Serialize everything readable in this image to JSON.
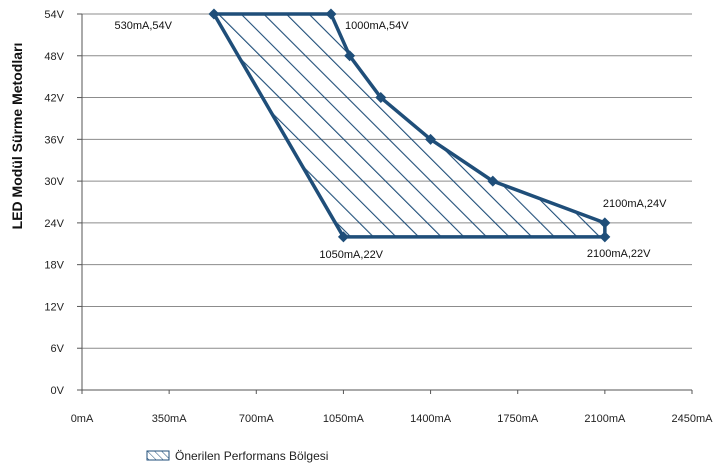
{
  "chart_data": {
    "type": "area",
    "ylabel": "LED Modül Sürme Metodları",
    "xlabel": "",
    "xlim": [
      0,
      2450
    ],
    "ylim": [
      0,
      54
    ],
    "x_ticks": [
      "0mA",
      "350mA",
      "700mA",
      "1050mA",
      "1400mA",
      "1750mA",
      "2100mA",
      "2450mA"
    ],
    "x_tick_values": [
      0,
      350,
      700,
      1050,
      1400,
      1750,
      2100,
      2450
    ],
    "y_ticks": [
      "0V",
      "6V",
      "12V",
      "18V",
      "24V",
      "30V",
      "36V",
      "42V",
      "48V",
      "54V"
    ],
    "y_tick_values": [
      0,
      6,
      12,
      18,
      24,
      30,
      36,
      42,
      48,
      54
    ],
    "grid": "horizontal",
    "series": [
      {
        "name": "Önerilen Performans Bölgesi",
        "color": "#1f4e79",
        "fill": "diagonal-hatch",
        "points": [
          {
            "x": 530,
            "y": 54
          },
          {
            "x": 1000,
            "y": 54
          },
          {
            "x": 1075,
            "y": 48
          },
          {
            "x": 1200,
            "y": 42
          },
          {
            "x": 1400,
            "y": 36
          },
          {
            "x": 1650,
            "y": 30
          },
          {
            "x": 2100,
            "y": 24
          },
          {
            "x": 2100,
            "y": 22
          },
          {
            "x": 1050,
            "y": 22
          }
        ]
      }
    ],
    "annotations": [
      {
        "text": "530mA,54V",
        "x": 530,
        "y": 54,
        "pos": "left-below"
      },
      {
        "text": "1000mA,54V",
        "x": 1000,
        "y": 54,
        "pos": "right-below"
      },
      {
        "text": "2100mA,24V",
        "x": 2100,
        "y": 24,
        "pos": "above"
      },
      {
        "text": "2100mA,22V",
        "x": 2100,
        "y": 22,
        "pos": "below"
      },
      {
        "text": "1050mA,22V",
        "x": 1050,
        "y": 22,
        "pos": "below"
      }
    ],
    "legend": {
      "position": "bottom-left",
      "label": "Önerilen Performans Bölgesi"
    }
  }
}
